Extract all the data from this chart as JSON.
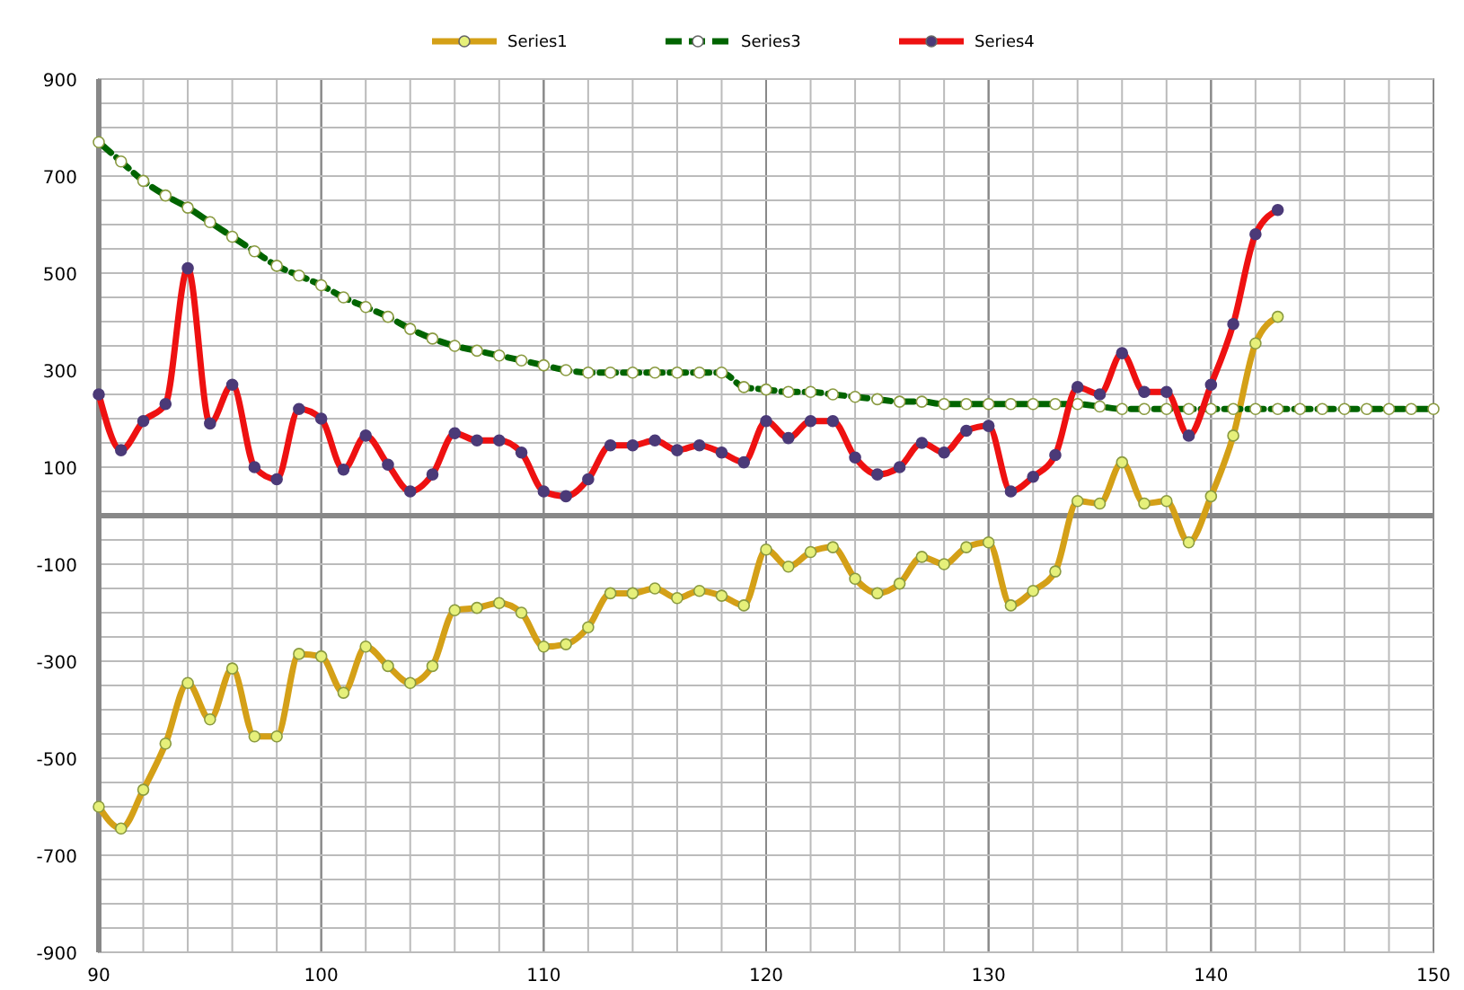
{
  "chart_data": {
    "type": "line",
    "x": [
      90,
      91,
      92,
      93,
      94,
      95,
      96,
      97,
      98,
      99,
      100,
      101,
      102,
      103,
      104,
      105,
      106,
      107,
      108,
      109,
      110,
      111,
      112,
      113,
      114,
      115,
      116,
      117,
      118,
      119,
      120,
      121,
      122,
      123,
      124,
      125,
      126,
      127,
      128,
      129,
      130,
      131,
      132,
      133,
      134,
      135,
      136,
      137,
      138,
      139,
      140,
      141,
      142,
      143
    ],
    "series": [
      {
        "name": "Series1",
        "color": "#d4a017",
        "line_style": "solid",
        "marker": "circle",
        "values": [
          -600,
          -645,
          -565,
          -470,
          -345,
          -420,
          -315,
          -455,
          -455,
          -285,
          -290,
          -365,
          -270,
          -310,
          -345,
          -310,
          -195,
          -190,
          -180,
          -200,
          -270,
          -265,
          -230,
          -160,
          -160,
          -150,
          -170,
          -155,
          -165,
          -185,
          -70,
          -105,
          -75,
          -65,
          -130,
          -160,
          -140,
          -85,
          -100,
          -65,
          -55,
          -185,
          -155,
          -115,
          30,
          25,
          110,
          25,
          30,
          -55,
          40,
          165,
          355,
          410
        ]
      },
      {
        "name": "Series3",
        "color": "#006400",
        "line_style": "dashed",
        "marker": "circle",
        "x": [
          90,
          91,
          92,
          93,
          94,
          95,
          96,
          97,
          98,
          99,
          100,
          101,
          102,
          103,
          104,
          105,
          106,
          107,
          108,
          109,
          110,
          111,
          112,
          113,
          114,
          115,
          116,
          117,
          118,
          119,
          120,
          121,
          122,
          123,
          124,
          125,
          126,
          127,
          128,
          129,
          130,
          131,
          132,
          133,
          134,
          135,
          136,
          137,
          138,
          139,
          140,
          141,
          142,
          143,
          144,
          145,
          146,
          147,
          148,
          149,
          150
        ],
        "values": [
          770,
          730,
          690,
          660,
          635,
          605,
          575,
          545,
          515,
          495,
          475,
          450,
          430,
          410,
          385,
          365,
          350,
          340,
          330,
          320,
          310,
          300,
          295,
          295,
          295,
          295,
          295,
          295,
          295,
          265,
          260,
          255,
          255,
          250,
          245,
          240,
          235,
          235,
          230,
          230,
          230,
          230,
          230,
          230,
          230,
          225,
          220,
          220,
          220,
          220,
          220,
          220,
          220,
          220,
          220,
          220,
          220,
          220,
          220,
          220,
          220
        ]
      },
      {
        "name": "Series4",
        "color": "#ee1111",
        "line_style": "solid",
        "marker": "circle",
        "values": [
          250,
          135,
          195,
          230,
          510,
          190,
          270,
          100,
          75,
          220,
          200,
          95,
          165,
          105,
          50,
          85,
          170,
          155,
          155,
          130,
          50,
          40,
          75,
          145,
          145,
          155,
          135,
          145,
          130,
          110,
          195,
          160,
          195,
          195,
          120,
          85,
          100,
          150,
          130,
          175,
          185,
          50,
          80,
          125,
          265,
          250,
          335,
          255,
          255,
          165,
          270,
          395,
          580,
          630
        ]
      }
    ],
    "xlim": [
      90,
      150
    ],
    "xticks": [
      90,
      100,
      110,
      120,
      130,
      140,
      150
    ],
    "ylim": [
      -900,
      900
    ],
    "yticks": [
      -900,
      -700,
      -500,
      -300,
      -100,
      100,
      300,
      500,
      700,
      900
    ],
    "grid": true,
    "legend": "top"
  }
}
